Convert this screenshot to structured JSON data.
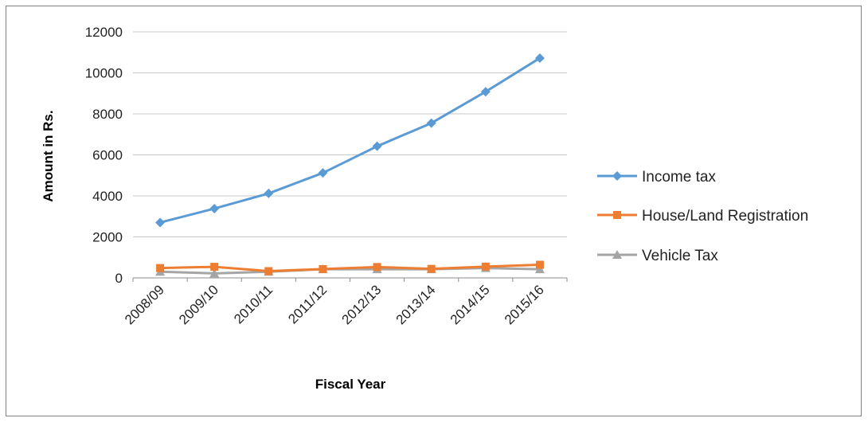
{
  "chart_data": {
    "type": "line",
    "title": "",
    "xlabel": "Fiscal Year",
    "ylabel": "Amount in Rs.",
    "categories": [
      "2008/09",
      "2009/10",
      "2010/11",
      "2011/12",
      "2012/13",
      "2013/14",
      "2014/15",
      "2015/16"
    ],
    "ylim": [
      0,
      12000
    ],
    "yticks": [
      0,
      2000,
      4000,
      6000,
      8000,
      10000,
      12000
    ],
    "grid": true,
    "legend_position": "right",
    "series": [
      {
        "name": "Income tax",
        "color": "#5b9bd5",
        "marker": "diamond",
        "values": [
          2700,
          3380,
          4120,
          5120,
          6420,
          7550,
          9080,
          10720
        ]
      },
      {
        "name": "House/Land Registration",
        "color": "#ed7d31",
        "marker": "square",
        "values": [
          480,
          540,
          330,
          430,
          530,
          440,
          550,
          640
        ]
      },
      {
        "name": "Vehicle Tax",
        "color": "#a5a5a5",
        "marker": "triangle",
        "values": [
          300,
          220,
          300,
          420,
          420,
          420,
          480,
          420
        ]
      }
    ]
  }
}
